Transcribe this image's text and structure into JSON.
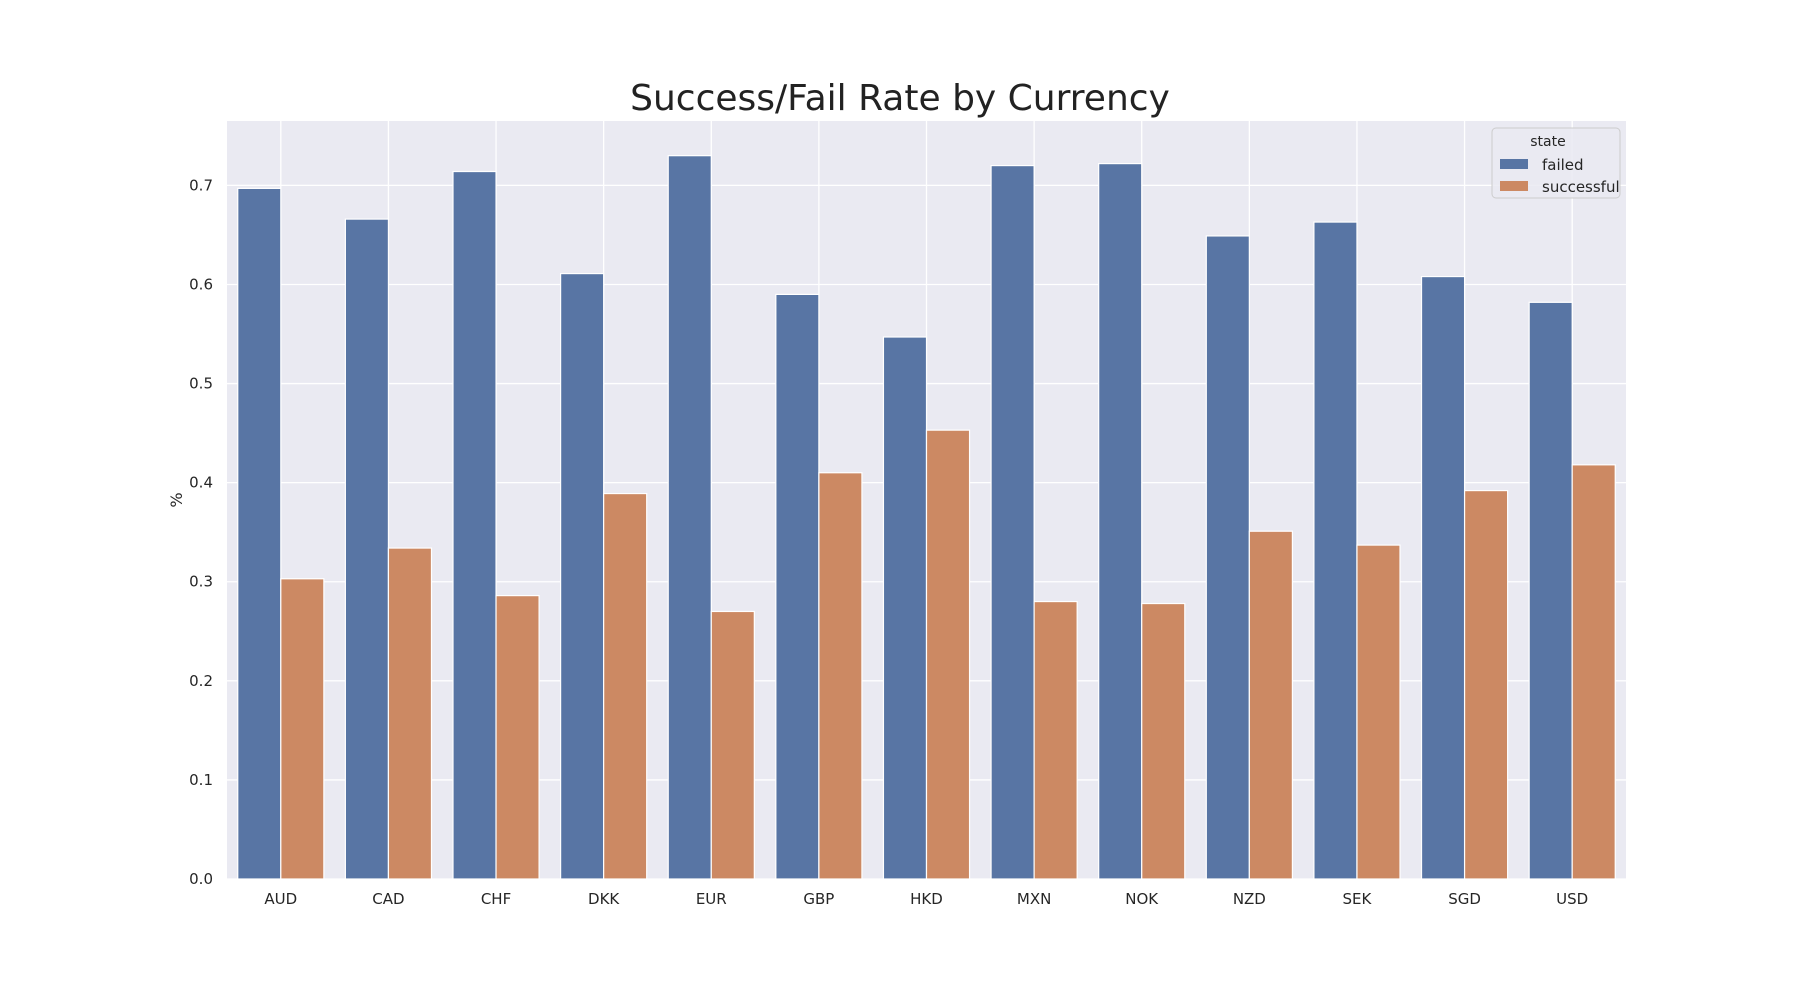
{
  "chart_data": {
    "type": "bar",
    "title": "Success/Fail Rate by Currency",
    "xlabel": "",
    "ylabel": "%",
    "ylim": [
      0,
      0.765
    ],
    "yticks": [
      "0.0",
      "0.1",
      "0.2",
      "0.3",
      "0.4",
      "0.5",
      "0.6",
      "0.7"
    ],
    "grid": true,
    "legend_placement": "top-right",
    "legend_title": "state",
    "categories": [
      "AUD",
      "CAD",
      "CHF",
      "DKK",
      "EUR",
      "GBP",
      "HKD",
      "MXN",
      "NOK",
      "NZD",
      "SEK",
      "SGD",
      "USD"
    ],
    "series": [
      {
        "name": "failed",
        "color": "#5875a4",
        "values": [
          0.697,
          0.666,
          0.714,
          0.611,
          0.73,
          0.59,
          0.547,
          0.72,
          0.722,
          0.649,
          0.663,
          0.608,
          0.582
        ]
      },
      {
        "name": "successful",
        "color": "#cc8963",
        "values": [
          0.303,
          0.334,
          0.286,
          0.389,
          0.27,
          0.41,
          0.453,
          0.28,
          0.278,
          0.351,
          0.337,
          0.392,
          0.418
        ]
      }
    ],
    "colors": {
      "plot_background": "#eaeaf2",
      "grid": "#ffffff",
      "text": "#262626"
    }
  }
}
